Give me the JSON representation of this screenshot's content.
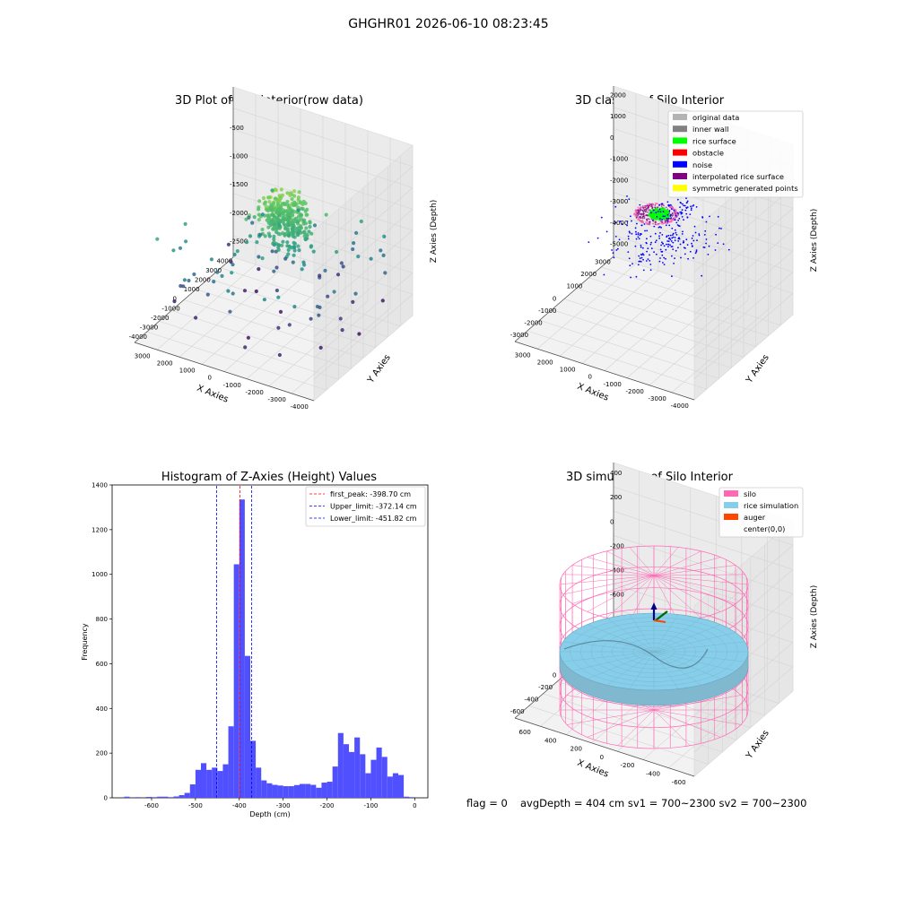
{
  "suptitle": "GHGHR01 2026-06-10 08:23:45",
  "footer": {
    "flag": "flag = 0",
    "stats": "avgDepth = 404 cm  sv1 = 700~2300  sv2 = 700~2300"
  },
  "colors": {
    "original": "#b3b3b3",
    "inner_wall": "#808080",
    "rice_surface": "#00ff00",
    "obstacle": "#ff0000",
    "noise": "#0000ff",
    "interpolated": "#800080",
    "symmetric": "#ffff00",
    "silo": "#ff69b4",
    "rice_sim": "#87ceeb",
    "auger": "#ff4500",
    "hist_bar": "#5050ff",
    "peak_line": "#ff0000",
    "limit_line": "#0000ff"
  },
  "chart_data": [
    {
      "type": "scatter",
      "title": "3D Plot of Silo Interior(row data)",
      "xlabel": "X Axies",
      "ylabel": "Y Axies",
      "zlabel": "Z Axies (Depth)",
      "xticks": [
        "-4000",
        "-3000",
        "-2000",
        "-1000",
        "0",
        "1000",
        "2000",
        "3000"
      ],
      "yticks": [
        "-4000",
        "-3000",
        "-2000",
        "-1000",
        "0",
        "1000",
        "2000",
        "3000",
        "4000"
      ],
      "zticks": [
        "0",
        "-500",
        "-1000",
        "-1500",
        "-2000",
        "-2500"
      ],
      "xlim": [
        -4200,
        3600
      ],
      "ylim": [
        -4200,
        4200
      ],
      "zlim": [
        -2900,
        100
      ],
      "colormap": "viridis (colored by depth)"
    },
    {
      "type": "scatter",
      "title": "3D classify of Silo Interior",
      "xlabel": "X Axies",
      "ylabel": "Y Axies",
      "zlabel": "Z Axies (Depth)",
      "xticks": [
        "-4000",
        "-3000",
        "-2000",
        "-1000",
        "0",
        "1000",
        "2000",
        "3000"
      ],
      "yticks": [
        "-3000",
        "-2000",
        "-1000",
        "0",
        "1000",
        "2000",
        "3000"
      ],
      "zticks": [
        "2000",
        "1000",
        "0",
        "-1000",
        "-2000",
        "-3000",
        "-4000",
        "-5000"
      ],
      "xlim": [
        -4200,
        3600
      ],
      "ylim": [
        -3400,
        3400
      ],
      "zlim": [
        -5200,
        2200
      ],
      "legend_position": "top-right",
      "legend": [
        "original data",
        "inner wall",
        "rice surface",
        "obstacle",
        "noise",
        "interpolated rice surface",
        "symmetric generated points"
      ]
    },
    {
      "type": "bar",
      "title": "Histogram of Z-Axies (Height) Values",
      "xlabel": "Depth (cm)",
      "ylabel": "Frequency",
      "xticks": [
        "-600",
        "-500",
        "-400",
        "-300",
        "-200",
        "-100",
        "0"
      ],
      "yticks": [
        "0",
        "200",
        "400",
        "600",
        "800",
        "1000",
        "1200",
        "1400"
      ],
      "xlim": [
        -690,
        30
      ],
      "ylim": [
        0,
        1400
      ],
      "bin_width": 12.5,
      "bin_starts": [
        -662.5,
        -637.5,
        -612.5,
        -600,
        -587.5,
        -575,
        -562.5,
        -550,
        -537.5,
        -525,
        -512.5,
        -500,
        -487.5,
        -475,
        -462.5,
        -450,
        -437.5,
        -425,
        -412.5,
        -400,
        -387.5,
        -375,
        -362.5,
        -350,
        -337.5,
        -325,
        -312.5,
        -300,
        -287.5,
        -275,
        -262.5,
        -250,
        -237.5,
        -225,
        -212.5,
        -200,
        -187.5,
        -175,
        -162.5,
        -150,
        -137.5,
        -125,
        -112.5,
        -100,
        -87.5,
        -75,
        -62.5,
        -50,
        -37.5,
        -25,
        -12.5
      ],
      "values": [
        5,
        3,
        4,
        3,
        5,
        5,
        3,
        6,
        12,
        22,
        60,
        125,
        155,
        125,
        135,
        120,
        150,
        320,
        1045,
        1335,
        635,
        255,
        135,
        78,
        65,
        58,
        55,
        52,
        52,
        57,
        62,
        62,
        58,
        45,
        68,
        72,
        140,
        290,
        240,
        205,
        270,
        195,
        110,
        170,
        225,
        183,
        95,
        110,
        102,
        5,
        3
      ],
      "lines": [
        {
          "label": "first_peak: -398.70 cm",
          "x": -398.7,
          "color": "#ff0000"
        },
        {
          "label": "Upper_limit: -372.14 cm",
          "x": -372.14,
          "color": "#0000ff"
        },
        {
          "label": "Lower_limit: -451.82 cm",
          "x": -451.82,
          "color": "#0000ff"
        }
      ],
      "legend_position": "top-right"
    },
    {
      "type": "surface",
      "title": "3D simulation of Silo Interior",
      "xlabel": "X Axies",
      "ylabel": "Y Axies",
      "zlabel": "Z Axies (Depth)",
      "xticks": [
        "-600",
        "-400",
        "-200",
        "0",
        "200",
        "400",
        "600"
      ],
      "yticks": [
        "-600",
        "-400",
        "-200",
        "0",
        "200",
        "400",
        "600"
      ],
      "zticks": [
        "400",
        "200",
        "0",
        "-200",
        "-400",
        "-600",
        "-800"
      ],
      "xlim": [
        -700,
        700
      ],
      "ylim": [
        -700,
        700
      ],
      "zlim": [
        -900,
        500
      ],
      "legend_position": "top-right",
      "legend": [
        "silo",
        "rice simulation",
        "auger",
        "center(0,0)"
      ]
    }
  ]
}
